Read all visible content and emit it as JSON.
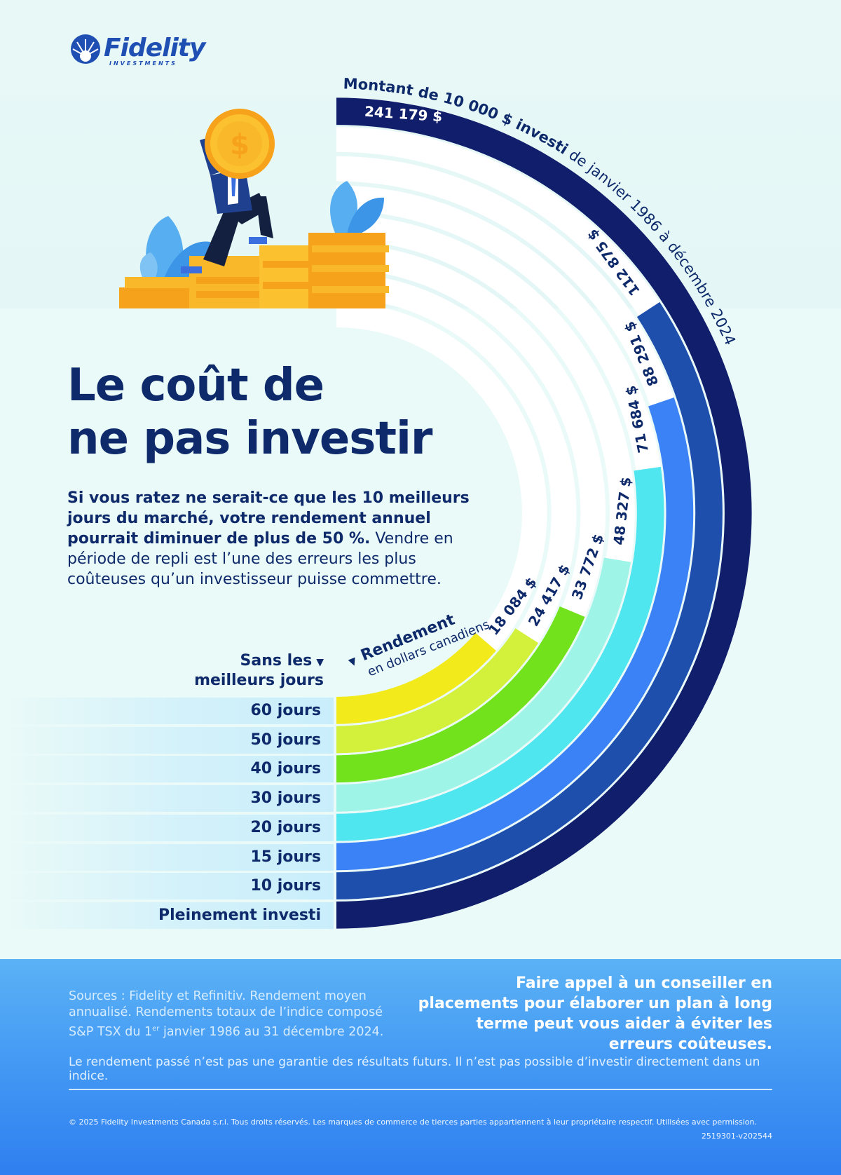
{
  "brand": {
    "name": "Fidelity",
    "sub": "INVESTMENTS"
  },
  "title": {
    "line1": "Le coût de",
    "line2": "ne pas investir"
  },
  "intro": {
    "bold": "Si vous ratez ne serait-ce que les 10 meilleurs jours du marché, votre rendement annuel pourrait diminuer de plus de 50 %.",
    "normal": " Vendre en période de repli est l’une des erreurs les plus coûteuses qu’un investisseur puisse commettre."
  },
  "chart_data": {
    "type": "bar",
    "title": "Montant de 10 000 $ investi de janvier 1986 à décembre 2024",
    "title_bold": "Montant de 10 000 $ investi",
    "title_rest": " de janvier 1986 à décembre 2024",
    "left_header_line1": "Sans les",
    "left_header_line2": "meilleurs jours",
    "right_header_line1": "Rendement",
    "right_header_line2": "en dollars canadiens",
    "categories": [
      "60 jours",
      "50 jours",
      "40 jours",
      "30 jours",
      "20 jours",
      "15 jours",
      "10 jours",
      "Pleinement investi"
    ],
    "values": [
      18084,
      24417,
      33772,
      48327,
      71684,
      88291,
      112875,
      241179
    ],
    "value_labels": [
      "18 084 $",
      "24 417 $",
      "33 772 $",
      "48 327 $",
      "71 684 $",
      "88 291 $",
      "112 875 $",
      "241 179 $"
    ],
    "colors": [
      "#f2ea1a",
      "#d3f03a",
      "#72e21c",
      "#9ff4e8",
      "#4fe6ef",
      "#3b82f7",
      "#1e4fad",
      "#101e6b"
    ]
  },
  "footer": {
    "sources_pre": "Sources : Fidelity et Refinitiv. Rendement moyen annualisé. Rendements totaux de l’indice composé S&P TSX du 1",
    "sources_sup": "er",
    "sources_post": " janvier 1986 au 31 décembre 2024.",
    "call": "Faire appel à un conseiller en placements pour élaborer un plan à long terme peut vous aider à éviter les erreurs coûteuses.",
    "disclaimer": "Le rendement passé n’est pas une garantie des résultats futurs. Il n’est pas possible d’investir directement dans un indice.",
    "copyright": "© 2025 Fidelity Investments Canada s.r.i. Tous droits réservés. Les marques de commerce de tierces parties appartiennent à leur propriétaire respectif. Utilisées avec permission.",
    "code": "2519301-v202544"
  }
}
